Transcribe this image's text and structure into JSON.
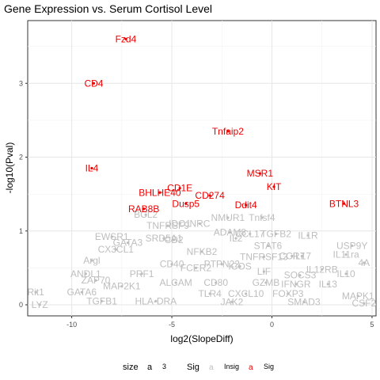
{
  "chart_data": {
    "type": "scatter",
    "title": "Gene Expression vs. Serum Cortisol Level",
    "xlabel": "log2(SlopeDiff)",
    "ylabel": "-log10(Pval)",
    "xlim": [
      -12.2,
      5.2
    ],
    "ylim": [
      -0.15,
      3.85
    ],
    "x_ticks": [
      -10,
      -5,
      0,
      5
    ],
    "y_ticks": [
      0,
      1,
      2,
      3
    ],
    "grid": true,
    "legend_position": "bottom",
    "legend": {
      "size_title": "size",
      "size_key": "a",
      "size_value": "3",
      "sig_title": "Sig",
      "sig_key": "a",
      "sig_levels": [
        "Insig",
        "Sig"
      ]
    },
    "colors": {
      "Sig": "#ee0000",
      "Insig": "#bebebe"
    },
    "series": [
      {
        "name": "Sig",
        "points": [
          {
            "label": "Fzd4",
            "x": -7.3,
            "y": 3.6
          },
          {
            "label": "CD4",
            "x": -8.9,
            "y": 3.0
          },
          {
            "label": "Tnfaip2",
            "x": -2.2,
            "y": 2.35
          },
          {
            "label": "IL4",
            "x": -9.0,
            "y": 1.85
          },
          {
            "label": "MSR1",
            "x": -0.6,
            "y": 1.78
          },
          {
            "label": "KIT",
            "x": 0.1,
            "y": 1.6
          },
          {
            "label": "CD1E",
            "x": -4.6,
            "y": 1.58
          },
          {
            "label": "BHLHE40",
            "x": -5.6,
            "y": 1.52
          },
          {
            "label": "CD274",
            "x": -3.1,
            "y": 1.48
          },
          {
            "label": "BTNL3",
            "x": 3.6,
            "y": 1.37
          },
          {
            "label": "Dusp5",
            "x": -4.3,
            "y": 1.37
          },
          {
            "label": "Ddit4",
            "x": -1.3,
            "y": 1.35
          },
          {
            "label": "RAB8B",
            "x": -6.4,
            "y": 1.3
          }
        ]
      },
      {
        "name": "Insig",
        "points": [
          {
            "label": "BCL2",
            "x": -6.3,
            "y": 1.22
          },
          {
            "label": "NMUR1",
            "x": -2.2,
            "y": 1.18
          },
          {
            "label": "Tnfsf4",
            "x": -0.5,
            "y": 1.18
          },
          {
            "label": "TNFRSF9",
            "x": -5.2,
            "y": 1.07
          },
          {
            "label": "IDO1",
            "x": -4.6,
            "y": 1.1
          },
          {
            "label": "NRC",
            "x": -3.6,
            "y": 1.1
          },
          {
            "label": "ADAM8",
            "x": -2.1,
            "y": 0.98
          },
          {
            "label": "CCL17",
            "x": -1.1,
            "y": 0.96
          },
          {
            "label": "TGFB2",
            "x": 0.2,
            "y": 0.96
          },
          {
            "label": "IL1R",
            "x": 1.8,
            "y": 0.94
          },
          {
            "label": "EWSR1",
            "x": -8.0,
            "y": 0.92
          },
          {
            "label": "IL2",
            "x": -1.8,
            "y": 0.9
          },
          {
            "label": "SRD5A1",
            "x": -5.4,
            "y": 0.9
          },
          {
            "label": "CD2",
            "x": -4.9,
            "y": 0.88
          },
          {
            "label": "USP9Y",
            "x": 4.0,
            "y": 0.8
          },
          {
            "label": "STAT6",
            "x": -0.2,
            "y": 0.8
          },
          {
            "label": "GATA3",
            "x": -7.2,
            "y": 0.84
          },
          {
            "label": "NFKB2",
            "x": -3.5,
            "y": 0.72
          },
          {
            "label": "IL11ra",
            "x": 3.7,
            "y": 0.68
          },
          {
            "label": "CX3CL1",
            "x": -7.8,
            "y": 0.75
          },
          {
            "label": "TNFRSF13",
            "x": -0.4,
            "y": 0.65
          },
          {
            "label": "CCR7",
            "x": 1.0,
            "y": 0.66
          },
          {
            "label": "IL17",
            "x": 1.5,
            "y": 0.66
          },
          {
            "label": "Argl",
            "x": -9.0,
            "y": 0.6
          },
          {
            "label": "CD40",
            "x": -5.0,
            "y": 0.55
          },
          {
            "label": "PTPN22",
            "x": -2.5,
            "y": 0.55
          },
          {
            "label": "FCER2",
            "x": -3.8,
            "y": 0.5
          },
          {
            "label": "ICOS",
            "x": -1.6,
            "y": 0.52
          },
          {
            "label": "4A",
            "x": 4.6,
            "y": 0.57
          },
          {
            "label": "IL12RB",
            "x": 2.5,
            "y": 0.48
          },
          {
            "label": "ANDL1",
            "x": -9.3,
            "y": 0.42
          },
          {
            "label": "PRF1",
            "x": -6.5,
            "y": 0.42
          },
          {
            "label": "LIF",
            "x": -0.4,
            "y": 0.45
          },
          {
            "label": "SOCS3",
            "x": 1.4,
            "y": 0.4
          },
          {
            "label": "IL10",
            "x": 3.7,
            "y": 0.42
          },
          {
            "label": "ZAP70",
            "x": -8.8,
            "y": 0.33
          },
          {
            "label": "ALCAM",
            "x": -4.8,
            "y": 0.3
          },
          {
            "label": "CD80",
            "x": -2.8,
            "y": 0.3
          },
          {
            "label": "GZMB",
            "x": -0.3,
            "y": 0.3
          },
          {
            "label": "IFNGR",
            "x": 1.2,
            "y": 0.28
          },
          {
            "label": "IL13",
            "x": 2.8,
            "y": 0.28
          },
          {
            "label": "MAP2K1",
            "x": -7.5,
            "y": 0.25
          },
          {
            "label": "Rit1",
            "x": -11.8,
            "y": 0.17
          },
          {
            "label": "GATA6",
            "x": -9.5,
            "y": 0.17
          },
          {
            "label": "TLR4",
            "x": -3.1,
            "y": 0.15
          },
          {
            "label": "CXCL10",
            "x": -1.3,
            "y": 0.15
          },
          {
            "label": "FOXP3",
            "x": 0.8,
            "y": 0.15
          },
          {
            "label": "MAPK1",
            "x": 4.3,
            "y": 0.12
          },
          {
            "label": "TGFB1",
            "x": -8.5,
            "y": 0.05
          },
          {
            "label": "HLA-DRA",
            "x": -5.8,
            "y": 0.05
          },
          {
            "label": "JAK2",
            "x": -2.0,
            "y": 0.04
          },
          {
            "label": "SMAD3",
            "x": 1.6,
            "y": 0.04
          },
          {
            "label": "CSF2",
            "x": 4.6,
            "y": 0.02
          },
          {
            "label": "LYZ",
            "x": -11.6,
            "y": 0.0
          }
        ]
      }
    ]
  }
}
